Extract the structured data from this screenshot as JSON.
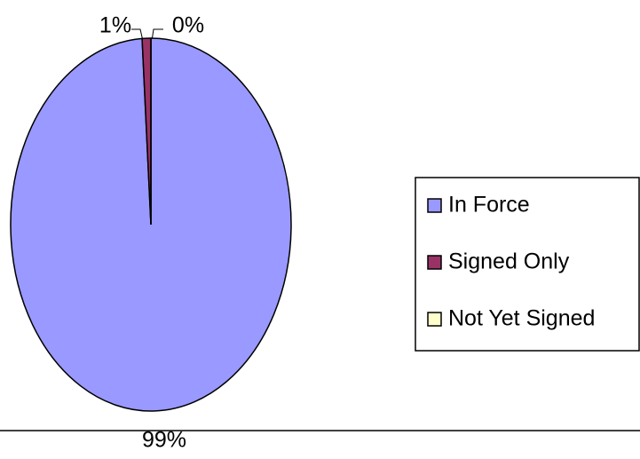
{
  "chart_data": {
    "type": "pie",
    "categories": [
      "In Force",
      "Signed Only",
      "Not Yet Signed"
    ],
    "values": [
      99,
      1,
      0
    ],
    "value_labels": [
      "99%",
      "1%",
      "0%"
    ],
    "colors": [
      "#9999ff",
      "#993366",
      "#ffffcc"
    ],
    "legend": "right"
  }
}
